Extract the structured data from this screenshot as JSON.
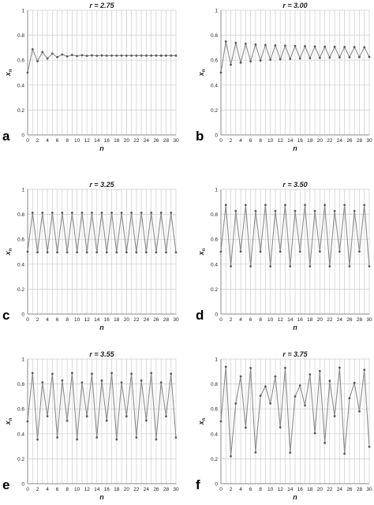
{
  "charts": [
    {
      "panel_label": "a",
      "chart_data": {
        "type": "line",
        "title": "r = 2.75",
        "xlabel": "n",
        "ylabel": "x",
        "ylabel_sub": "n",
        "xlim": [
          0,
          30
        ],
        "ylim": [
          0,
          1
        ],
        "x_ticks": [
          "0",
          "2",
          "4",
          "6",
          "8",
          "10",
          "12",
          "14",
          "16",
          "18",
          "20",
          "22",
          "24",
          "26",
          "28",
          "30"
        ],
        "y_ticks": [
          "0",
          "0.2",
          "0.4",
          "0.6",
          "0.8",
          "1"
        ],
        "grid": true,
        "series": [
          {
            "values": [
              0.5,
              0.6875,
              0.5908,
              0.6649,
              0.6128,
              0.6523,
              0.6238,
              0.6453,
              0.6296,
              0.6413,
              0.6327,
              0.6391,
              0.6344,
              0.6379,
              0.6353,
              0.6372,
              0.6358,
              0.6369,
              0.6361,
              0.6367,
              0.6362,
              0.6366,
              0.6363,
              0.6365,
              0.6364,
              0.6365,
              0.6364,
              0.6364,
              0.6364,
              0.6364,
              0.6364
            ]
          }
        ]
      }
    },
    {
      "panel_label": "b",
      "chart_data": {
        "type": "line",
        "title": "r = 3.00",
        "xlabel": "n",
        "ylabel": "x",
        "ylabel_sub": "n",
        "xlim": [
          0,
          30
        ],
        "ylim": [
          0,
          1
        ],
        "x_ticks": [
          "0",
          "2",
          "4",
          "6",
          "8",
          "10",
          "12",
          "14",
          "16",
          "18",
          "20",
          "22",
          "24",
          "26",
          "28",
          "30"
        ],
        "y_ticks": [
          "0",
          "0.2",
          "0.4",
          "0.6",
          "0.8",
          "1"
        ],
        "grid": true,
        "series": [
          {
            "values": [
              0.5,
              0.75,
              0.5625,
              0.7383,
              0.5797,
              0.731,
              0.5899,
              0.7257,
              0.5972,
              0.7217,
              0.6026,
              0.7185,
              0.6068,
              0.7158,
              0.6103,
              0.7135,
              0.6133,
              0.7115,
              0.6158,
              0.7098,
              0.618,
              0.7082,
              0.6199,
              0.7068,
              0.6217,
              0.7056,
              0.6232,
              0.7045,
              0.6246,
              0.7034,
              0.6261
            ]
          }
        ]
      }
    },
    {
      "panel_label": "c",
      "chart_data": {
        "type": "line",
        "title": "r = 3.25",
        "xlabel": "n",
        "ylabel": "x",
        "ylabel_sub": "n",
        "xlim": [
          0,
          30
        ],
        "ylim": [
          0,
          1
        ],
        "x_ticks": [
          "0",
          "2",
          "4",
          "6",
          "8",
          "10",
          "12",
          "14",
          "16",
          "18",
          "20",
          "22",
          "24",
          "26",
          "28",
          "30"
        ],
        "y_ticks": [
          "0",
          "0.2",
          "0.4",
          "0.6",
          "0.8",
          "1"
        ],
        "grid": true,
        "series": [
          {
            "values": [
              0.5,
              0.8125,
              0.4951,
              0.8125,
              0.4952,
              0.8124,
              0.4953,
              0.8124,
              0.4953,
              0.8124,
              0.4953,
              0.8124,
              0.4953,
              0.8124,
              0.4953,
              0.8124,
              0.4953,
              0.8124,
              0.4953,
              0.8124,
              0.4953,
              0.8124,
              0.4953,
              0.8124,
              0.4953,
              0.8124,
              0.4953,
              0.8124,
              0.4953,
              0.8124,
              0.4953
            ]
          }
        ]
      }
    },
    {
      "panel_label": "d",
      "chart_data": {
        "type": "line",
        "title": "r = 3.50",
        "xlabel": "n",
        "ylabel": "x",
        "ylabel_sub": "n",
        "xlim": [
          0,
          30
        ],
        "ylim": [
          0,
          1
        ],
        "x_ticks": [
          "0",
          "2",
          "4",
          "6",
          "8",
          "10",
          "12",
          "14",
          "16",
          "18",
          "20",
          "22",
          "24",
          "26",
          "28",
          "30"
        ],
        "y_ticks": [
          "0",
          "0.2",
          "0.4",
          "0.6",
          "0.8",
          "1"
        ],
        "grid": true,
        "series": [
          {
            "values": [
              0.5,
              0.875,
              0.3828,
              0.8269,
              0.5009,
              0.875,
              0.3828,
              0.8269,
              0.5009,
              0.875,
              0.3828,
              0.8269,
              0.5009,
              0.875,
              0.3828,
              0.8269,
              0.5009,
              0.875,
              0.3828,
              0.8269,
              0.5009,
              0.875,
              0.3828,
              0.8269,
              0.5009,
              0.875,
              0.3828,
              0.8269,
              0.5009,
              0.875,
              0.3828
            ]
          }
        ]
      }
    },
    {
      "panel_label": "e",
      "chart_data": {
        "type": "line",
        "title": "r = 3.55",
        "xlabel": "n",
        "ylabel": "x",
        "ylabel_sub": "n",
        "xlim": [
          0,
          30
        ],
        "ylim": [
          0,
          1
        ],
        "x_ticks": [
          "0",
          "2",
          "4",
          "6",
          "8",
          "10",
          "12",
          "14",
          "16",
          "18",
          "20",
          "22",
          "24",
          "26",
          "28",
          "30"
        ],
        "y_ticks": [
          "0",
          "0.2",
          "0.4",
          "0.6",
          "0.8",
          "1"
        ],
        "grid": true,
        "series": [
          {
            "values": [
              0.5,
              0.8875,
              0.3544,
              0.8123,
              0.5412,
              0.8815,
              0.3708,
              0.8283,
              0.5049,
              0.8874,
              0.3548,
              0.8126,
              0.5406,
              0.8816,
              0.3705,
              0.8279,
              0.5058,
              0.8874,
              0.3548,
              0.8127,
              0.5404,
              0.8817,
              0.3703,
              0.8278,
              0.506,
              0.8874,
              0.3548,
              0.8127,
              0.5404,
              0.8817,
              0.3703
            ]
          }
        ]
      }
    },
    {
      "panel_label": "f",
      "chart_data": {
        "type": "line",
        "title": "r = 3.75",
        "xlabel": "n",
        "ylabel": "x",
        "ylabel_sub": "n",
        "xlim": [
          0,
          30
        ],
        "ylim": [
          0,
          1
        ],
        "x_ticks": [
          "0",
          "2",
          "4",
          "6",
          "8",
          "10",
          "12",
          "14",
          "16",
          "18",
          "20",
          "22",
          "24",
          "26",
          "28",
          "30"
        ],
        "y_ticks": [
          "0",
          "0.2",
          "0.4",
          "0.6",
          "0.8",
          "1"
        ],
        "grid": true,
        "series": [
          {
            "values": [
              0.5,
              0.9375,
              0.2197,
              0.6429,
              0.8609,
              0.449,
              0.9278,
              0.251,
              0.705,
              0.7799,
              0.6436,
              0.86,
              0.4514,
              0.9287,
              0.2483,
              0.6999,
              0.7877,
              0.6272,
              0.8768,
              0.4049,
              0.9036,
              0.3267,
              0.825,
              0.5414,
              0.9311,
              0.2406,
              0.6852,
              0.8089,
              0.5797,
              0.9137,
              0.2957
            ]
          }
        ]
      }
    }
  ],
  "colors": {
    "line": "#8c8c8c",
    "marker": "#5a5a5a",
    "grid": "#cccccc",
    "axis": "#8a8a8a",
    "text": "#222222"
  }
}
